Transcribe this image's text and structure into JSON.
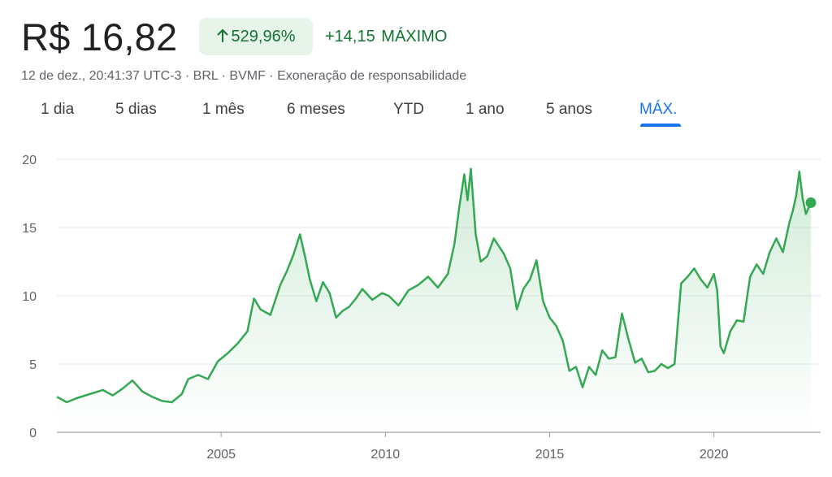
{
  "header": {
    "price": "R$ 16,82",
    "change_percent": "529,96%",
    "change_abs": "+14,15",
    "period_label": "MÁXIMO",
    "meta": "12 de dez., 20:41:37 UTC-3 · BRL · BVMF · Exoneração de responsabilidade",
    "accent_color": "#137333",
    "badge_color": "#e6f4ea",
    "arrow_icon": "arrow-up-icon"
  },
  "tabs": [
    {
      "label": "1 dia"
    },
    {
      "label": "5 dias"
    },
    {
      "label": "1 mês"
    },
    {
      "label": "6 meses"
    },
    {
      "label": "YTD"
    },
    {
      "label": "1 ano"
    },
    {
      "label": "5 anos"
    },
    {
      "label": "MÁX.",
      "active": true
    }
  ],
  "chart_data": {
    "type": "area",
    "line_color": "#34a853",
    "ylim": [
      0,
      20
    ],
    "yticks": [
      "0",
      "5",
      "10",
      "15",
      "20"
    ],
    "xticks": [
      "2005",
      "2010",
      "2015",
      "2020"
    ],
    "xlim": [
      2000.0,
      2023.0
    ],
    "grid": true,
    "series": [
      {
        "x": [
          2000.0,
          2000.3,
          2000.6,
          2001.0,
          2001.4,
          2001.7,
          2002.0,
          2002.3,
          2002.6,
          2002.9,
          2003.2,
          2003.5,
          2003.8,
          2004.0,
          2004.3,
          2004.6,
          2004.9,
          2005.2,
          2005.5,
          2005.8,
          2006.0,
          2006.2,
          2006.5,
          2006.8,
          2007.0,
          2007.2,
          2007.4,
          2007.55,
          2007.7,
          2007.9,
          2008.1,
          2008.3,
          2008.5,
          2008.7,
          2008.9,
          2009.1,
          2009.3,
          2009.6,
          2009.9,
          2010.1,
          2010.4,
          2010.7,
          2011.0,
          2011.3,
          2011.6,
          2011.9,
          2012.1,
          2012.25,
          2012.4,
          2012.5,
          2012.6,
          2012.75,
          2012.9,
          2013.1,
          2013.3,
          2013.6,
          2013.8,
          2014.0,
          2014.2,
          2014.4,
          2014.6,
          2014.8,
          2015.0,
          2015.2,
          2015.4,
          2015.6,
          2015.8,
          2016.0,
          2016.2,
          2016.4,
          2016.6,
          2016.8,
          2017.0,
          2017.2,
          2017.4,
          2017.6,
          2017.8,
          2018.0,
          2018.2,
          2018.4,
          2018.6,
          2018.8,
          2019.0,
          2019.2,
          2019.4,
          2019.6,
          2019.8,
          2020.0,
          2020.1,
          2020.2,
          2020.3,
          2020.5,
          2020.7,
          2020.9,
          2021.1,
          2021.3,
          2021.5,
          2021.7,
          2021.9,
          2022.1,
          2022.3,
          2022.4,
          2022.5,
          2022.6,
          2022.7,
          2022.8,
          2022.95
        ],
        "y": [
          2.6,
          2.2,
          2.5,
          2.8,
          3.1,
          2.7,
          3.2,
          3.8,
          3.0,
          2.6,
          2.3,
          2.2,
          2.8,
          3.9,
          4.2,
          3.9,
          5.2,
          5.8,
          6.5,
          7.4,
          9.8,
          9.0,
          8.6,
          10.8,
          11.8,
          13.0,
          14.5,
          12.9,
          11.2,
          9.6,
          11.0,
          10.2,
          8.4,
          8.9,
          9.2,
          9.8,
          10.5,
          9.7,
          10.2,
          10.0,
          9.3,
          10.4,
          10.8,
          11.4,
          10.6,
          11.6,
          13.8,
          16.5,
          18.9,
          17.0,
          19.3,
          14.5,
          12.5,
          12.9,
          14.2,
          13.1,
          12.0,
          9.0,
          10.5,
          11.2,
          12.6,
          9.6,
          8.4,
          7.8,
          6.7,
          4.5,
          4.8,
          3.3,
          4.8,
          4.2,
          6.0,
          5.4,
          5.5,
          8.7,
          6.8,
          5.1,
          5.4,
          4.4,
          4.5,
          5.0,
          4.7,
          5.0,
          10.9,
          11.4,
          12.0,
          11.2,
          10.6,
          11.6,
          10.4,
          6.3,
          5.8,
          7.4,
          8.2,
          8.1,
          11.4,
          12.3,
          11.6,
          13.2,
          14.2,
          13.2,
          15.4,
          16.2,
          17.3,
          19.1,
          17.1,
          16.0,
          16.82
        ]
      }
    ],
    "last_point": {
      "x": 2022.95,
      "y": 16.82
    }
  }
}
